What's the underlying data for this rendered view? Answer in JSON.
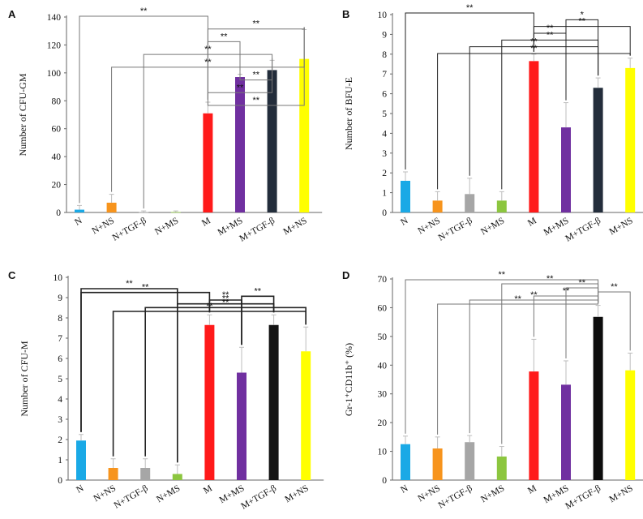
{
  "chart_data": [
    {
      "panel": "A",
      "type": "bar",
      "ylabel": "Number of CFU-GM",
      "ylim": [
        0,
        140
      ],
      "yticks": [
        0,
        20,
        40,
        60,
        80,
        100,
        120,
        140
      ],
      "categories": [
        "N",
        "N+NS",
        "N+TGF-β",
        "N+MS",
        "M",
        "M+MS",
        "M+TGF-β",
        "M+NS"
      ],
      "values": [
        2,
        7,
        0.3,
        0.3,
        71,
        97,
        102,
        110
      ],
      "errors": [
        3,
        6,
        0.8,
        0.8,
        8,
        2,
        7,
        21
      ],
      "colors": [
        "#1aa9e6",
        "#f7941d",
        "#a6a6a6",
        "#8cc63f",
        "#ff1a1a",
        "#7030a0",
        "#232d3b",
        "#ffff00"
      ],
      "significance": [
        {
          "from": 0,
          "to": 4,
          "label": "**"
        },
        {
          "from": 4,
          "to": 7,
          "label": "**"
        },
        {
          "from": 4,
          "to": 5,
          "label": "**"
        },
        {
          "from": 2,
          "to": 6,
          "label": "**"
        },
        {
          "from": 1,
          "to": 7,
          "label": "**"
        },
        {
          "from": 5,
          "to": 6,
          "label": "**"
        },
        {
          "from": 4,
          "to": 6,
          "label": "**"
        },
        {
          "from": 4,
          "to": 7,
          "label": "**"
        }
      ]
    },
    {
      "panel": "B",
      "type": "bar",
      "ylabel": "Number of BFU-E",
      "ylim": [
        0,
        10
      ],
      "yticks": [
        0,
        1,
        2,
        3,
        4,
        5,
        6,
        7,
        8,
        9,
        10
      ],
      "categories": [
        "N",
        "N+NS",
        "N+TGF-β",
        "N+MS",
        "M",
        "M+MS",
        "M+TGF-β",
        "M+NS"
      ],
      "values": [
        1.6,
        0.6,
        0.93,
        0.6,
        7.65,
        4.3,
        6.3,
        7.3
      ],
      "errors": [
        0.45,
        0.45,
        0.8,
        0.45,
        0.35,
        1.25,
        0.5,
        0.5
      ],
      "colors": [
        "#1aa9e6",
        "#f7941d",
        "#a6a6a6",
        "#8cc63f",
        "#ff1a1a",
        "#7030a0",
        "#232d3b",
        "#ffff00"
      ],
      "significance": [
        {
          "from": 0,
          "to": 4,
          "label": "**"
        },
        {
          "from": 5,
          "to": 6,
          "label": "*"
        },
        {
          "from": 4,
          "to": 7,
          "label": "**"
        },
        {
          "from": 4,
          "to": 5,
          "label": "**"
        },
        {
          "from": 3,
          "to": 6,
          "label": "**"
        },
        {
          "from": 2,
          "to": 6,
          "label": "**"
        },
        {
          "from": 1,
          "to": 7,
          "label": "**"
        }
      ]
    },
    {
      "panel": "C",
      "type": "bar",
      "ylabel": "Number of CFU-M",
      "ylim": [
        0,
        10
      ],
      "yticks": [
        0,
        1,
        2,
        3,
        4,
        5,
        6,
        7,
        8,
        9,
        10
      ],
      "categories": [
        "N",
        "N+NS",
        "N+TGF-β",
        "N+MS",
        "M",
        "M+MS",
        "M+TGF-β",
        "M+NS"
      ],
      "values": [
        1.95,
        0.6,
        0.6,
        0.3,
        7.65,
        5.3,
        7.65,
        6.35
      ],
      "errors": [
        0.3,
        0.45,
        0.45,
        0.45,
        0.5,
        1.25,
        0.5,
        1.2
      ],
      "colors": [
        "#1aa9e6",
        "#f7941d",
        "#a6a6a6",
        "#8cc63f",
        "#ff1a1a",
        "#7030a0",
        "#141414",
        "#ffff00"
      ],
      "significance": [
        {
          "from": 0,
          "to": 3,
          "label": "**"
        },
        {
          "from": 0,
          "to": 4,
          "label": "**"
        },
        {
          "from": 5,
          "to": 6,
          "label": "**"
        },
        {
          "from": 4,
          "to": 5,
          "label": "**"
        },
        {
          "from": 3,
          "to": 6,
          "label": "**"
        },
        {
          "from": 2,
          "to": 7,
          "label": "**"
        },
        {
          "from": 1,
          "to": 7,
          "label": "**"
        }
      ]
    },
    {
      "panel": "D",
      "type": "bar",
      "ylabel": "Gr-1⁺CD11b⁺ (%)",
      "ylim": [
        0,
        70
      ],
      "yticks": [
        0,
        10,
        20,
        30,
        40,
        50,
        60,
        70
      ],
      "categories": [
        "N",
        "N+NS",
        "N+TGF-β",
        "N+MS",
        "M",
        "M+MS",
        "M+TGF-β",
        "M+NS"
      ],
      "values": [
        12.5,
        11,
        13.2,
        8.2,
        37.8,
        33.2,
        56.8,
        38.2
      ],
      "errors": [
        2.8,
        4,
        2.3,
        3.5,
        11.2,
        8.3,
        4,
        6
      ],
      "colors": [
        "#1aa9e6",
        "#f7941d",
        "#a6a6a6",
        "#8cc63f",
        "#ff1a1a",
        "#7030a0",
        "#0d0d0d",
        "#ffff00"
      ],
      "significance": [
        {
          "from": 0,
          "to": 6,
          "label": "**"
        },
        {
          "from": 3,
          "to": 6,
          "label": "**"
        },
        {
          "from": 5,
          "to": 6,
          "label": "**"
        },
        {
          "from": 6,
          "to": 7,
          "label": "**"
        },
        {
          "from": 4,
          "to": 6,
          "label": "**"
        },
        {
          "from": 2,
          "to": 6,
          "label": "**"
        },
        {
          "from": 1,
          "to": 6,
          "label": "**"
        }
      ]
    }
  ]
}
